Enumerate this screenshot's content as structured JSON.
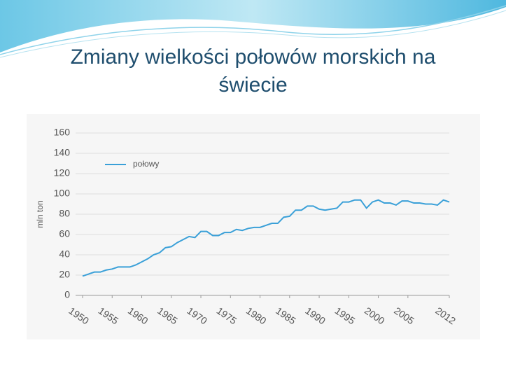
{
  "chart_data": {
    "type": "line",
    "title": "Zmiany wielkości połowów morskich na świecie",
    "y_label": "mln ton",
    "x": [
      1950,
      1951,
      1952,
      1953,
      1954,
      1955,
      1956,
      1957,
      1958,
      1959,
      1960,
      1961,
      1962,
      1963,
      1964,
      1965,
      1966,
      1967,
      1968,
      1969,
      1970,
      1971,
      1972,
      1973,
      1974,
      1975,
      1976,
      1977,
      1978,
      1979,
      1980,
      1981,
      1982,
      1983,
      1984,
      1985,
      1986,
      1987,
      1988,
      1989,
      1990,
      1991,
      1992,
      1993,
      1994,
      1995,
      1996,
      1997,
      1998,
      1999,
      2000,
      2001,
      2002,
      2003,
      2004,
      2005,
      2006,
      2007,
      2008,
      2009,
      2010,
      2011,
      2012
    ],
    "series": [
      {
        "name": "połowy",
        "color": "#3aa0d8",
        "values": [
          19,
          21,
          23,
          23,
          25,
          26,
          28,
          28,
          28,
          30,
          33,
          36,
          40,
          42,
          47,
          48,
          52,
          55,
          58,
          57,
          63,
          63,
          59,
          59,
          62,
          62,
          65,
          64,
          66,
          67,
          67,
          69,
          71,
          71,
          77,
          78,
          84,
          84,
          88,
          88,
          85,
          84,
          85,
          86,
          92,
          92,
          94,
          94,
          86,
          92,
          94,
          91,
          91,
          89,
          93,
          93,
          91,
          91,
          90,
          90,
          89,
          94,
          92
        ]
      }
    ],
    "xlim": [
      1950,
      2012
    ],
    "xticks": [
      1950,
      1955,
      1960,
      1965,
      1970,
      1975,
      1980,
      1985,
      1990,
      1995,
      2000,
      2005,
      2012
    ],
    "ylim": [
      0,
      160
    ],
    "yticks": [
      0,
      20,
      40,
      60,
      80,
      100,
      120,
      140,
      160
    ],
    "grid": true,
    "legend": "upper left"
  }
}
